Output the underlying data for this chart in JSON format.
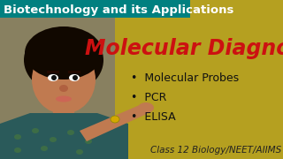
{
  "bg_color": "#b5a020",
  "header_bg": "#008080",
  "header_text": "Biotechnology and its Applications",
  "header_text_color": "#ffffff",
  "header_fontsize": 9.5,
  "title_text": "Molecular Diagnosis",
  "title_color": "#cc1111",
  "title_fontsize": 17,
  "bullets": [
    "Molecular Probes",
    "PCR",
    "ELISA"
  ],
  "bullet_color": "#111111",
  "bullet_fontsize": 9,
  "footer_text": "Class 12 Biology/NEET/AIIMS",
  "footer_color": "#222222",
  "footer_fontsize": 7.5,
  "figsize": [
    3.2,
    1.8
  ],
  "dpi": 100,
  "person_skin": "#c07a50",
  "person_hair": "#110800",
  "person_cloth": "#2a5a5a",
  "person_cloth2": "#4a7a3a"
}
